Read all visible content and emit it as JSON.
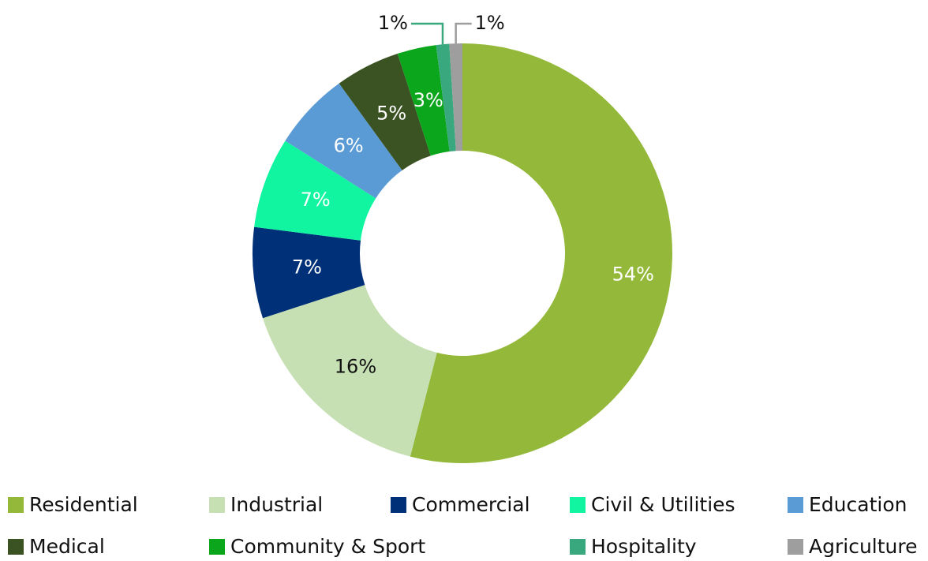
{
  "chart_data": {
    "type": "donut",
    "categories": [
      "Residential",
      "Industrial",
      "Commercial",
      "Civil & Utilities",
      "Education",
      "Medical",
      "Community & Sport",
      "Hospitality",
      "Agriculture"
    ],
    "values": [
      54,
      16,
      7,
      7,
      6,
      5,
      3,
      1,
      1
    ],
    "value_labels": [
      "54%",
      "16%",
      "7%",
      "7%",
      "6%",
      "5%",
      "3%",
      "1%",
      "1%"
    ],
    "colors": [
      "#94b93a",
      "#c6e0b4",
      "#003078",
      "#11f5a0",
      "#5b9bd5",
      "#3b5323",
      "#0ca61d",
      "#39a87f",
      "#9e9e9e"
    ],
    "legend": "bottom"
  }
}
